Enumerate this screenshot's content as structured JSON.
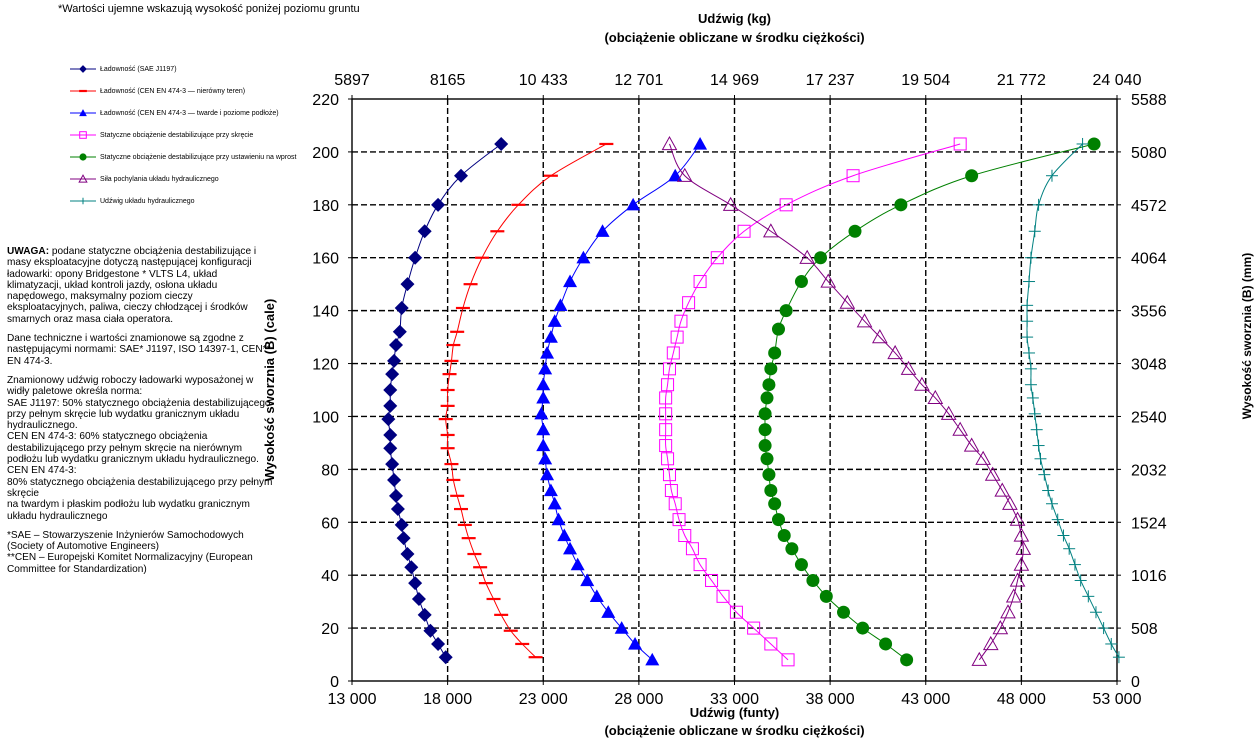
{
  "top_note": "*Wartości ujemne wskazują wysokość poniżej poziomu gruntu",
  "notes": {
    "uwaga_title": "UWAGA:",
    "uwaga_text": " podane statyczne obciążenia destabilizujące i masy eksploatacyjne dotyczą następującej konfiguracji ładowarki: opony Bridgestone * VLTS L4, układ klimatyzacji, układ kontroli jazdy, osłona układu napędowego, maksymalny poziom cieczy eksploatacyjnych, paliwa, cieczy chłodzącej i środków smarnych oraz masa ciała operatora.",
    "standards": "Dane techniczne i wartości znamionowe są zgodne z następującymi normami: SAE* J1197, ISO 14397-1, CEN** EN 474-3.",
    "rated": "Znamionowy udźwig roboczy ładowarki wyposażonej w widły paletowe określa norma:\nSAE J1197: 50% statycznego obciążenia destabilizującego przy pełnym skręcie lub wydatku granicznym układu hydraulicznego.\nCEN EN 474-3: 60% statycznego obciążenia destabilizującego przy pełnym skręcie na nierównym podłożu lub wydatku granicznym układu hydraulicznego.\nCEN EN 474-3:\n80% statycznego obciążenia destabilizującego przy pełnym skręcie\nna twardym i płaskim podłożu lub wydatku granicznym układu hydraulicznego",
    "sae_def": "*SAE – Stowarzyszenie Inżynierów Samochodowych (Society of Automotive Engineers)",
    "cen_def": "**CEN – Europejski Komitet Normalizacyjny (European Committee for Standardization)"
  },
  "chart_data": {
    "type": "line",
    "title": "Udźwig (kg)",
    "subtitle": "(obciążenie obliczane w środku ciężkości)",
    "xlabel": "Udźwig (funty)",
    "xlabel_sub": "(obciążenie obliczane w środku ciężkości)",
    "ylabel": "Wysokość sworznia (B) (cale)",
    "ylabel_right": "Wysokość sworznia (B) (mm)",
    "xlim": [
      13000,
      53000
    ],
    "ylim": [
      0,
      220
    ],
    "x_ticks": [
      "13 000",
      "18 000",
      "23 000",
      "28 000",
      "33 000",
      "38 000",
      "43 000",
      "48 000",
      "53 000"
    ],
    "x2_ticks": [
      "5897",
      "8165",
      "10 433",
      "12 701",
      "14 969",
      "17 237",
      "19 504",
      "21 772",
      "24 040"
    ],
    "y_ticks": [
      "0",
      "20",
      "40",
      "60",
      "80",
      "100",
      "120",
      "140",
      "160",
      "180",
      "200",
      "220"
    ],
    "y2_ticks": [
      "0",
      "508",
      "1016",
      "1524",
      "2032",
      "2540",
      "3048",
      "3556",
      "4064",
      "4572",
      "5080",
      "5588"
    ],
    "grid": true,
    "legend_position": "top-left",
    "series": [
      {
        "name": "Ładowność (SAE J1197)",
        "color": "#000080",
        "marker": "diamond",
        "points": [
          [
            17900,
            9
          ],
          [
            17500,
            14
          ],
          [
            17100,
            19
          ],
          [
            16800,
            25
          ],
          [
            16500,
            31
          ],
          [
            16300,
            37
          ],
          [
            16100,
            43
          ],
          [
            15900,
            48
          ],
          [
            15700,
            54
          ],
          [
            15600,
            59
          ],
          [
            15400,
            65
          ],
          [
            15300,
            70
          ],
          [
            15200,
            76
          ],
          [
            15100,
            82
          ],
          [
            15000,
            88
          ],
          [
            15000,
            93
          ],
          [
            14900,
            99
          ],
          [
            15000,
            104
          ],
          [
            15000,
            110
          ],
          [
            15100,
            116
          ],
          [
            15200,
            121
          ],
          [
            15300,
            127
          ],
          [
            15500,
            132
          ],
          [
            15600,
            141
          ],
          [
            15900,
            150
          ],
          [
            16300,
            160
          ],
          [
            16800,
            170
          ],
          [
            17500,
            180
          ],
          [
            18700,
            191
          ],
          [
            20800,
            203
          ]
        ]
      },
      {
        "name": "Ładowność (CEN EN 474-3 — nierówny teren)",
        "color": "#ff0000",
        "marker": "dash",
        "points": [
          [
            22600,
            9
          ],
          [
            21900,
            14
          ],
          [
            21300,
            19
          ],
          [
            20800,
            25
          ],
          [
            20400,
            31
          ],
          [
            20000,
            37
          ],
          [
            19700,
            43
          ],
          [
            19400,
            48
          ],
          [
            19100,
            54
          ],
          [
            18900,
            59
          ],
          [
            18700,
            65
          ],
          [
            18500,
            70
          ],
          [
            18300,
            76
          ],
          [
            18200,
            82
          ],
          [
            18000,
            88
          ],
          [
            18000,
            93
          ],
          [
            17900,
            99
          ],
          [
            18000,
            104
          ],
          [
            18000,
            110
          ],
          [
            18100,
            116
          ],
          [
            18200,
            121
          ],
          [
            18300,
            127
          ],
          [
            18500,
            132
          ],
          [
            18800,
            141
          ],
          [
            19200,
            150
          ],
          [
            19800,
            160
          ],
          [
            20600,
            170
          ],
          [
            21700,
            180
          ],
          [
            23400,
            191
          ],
          [
            26300,
            203
          ]
        ]
      },
      {
        "name": "Ładowność (CEN EN 474-3 — twarde i poziome podłoże)",
        "color": "#0000ff",
        "marker": "triangle",
        "points": [
          [
            28700,
            8
          ],
          [
            27800,
            14
          ],
          [
            27100,
            20
          ],
          [
            26400,
            26
          ],
          [
            25800,
            32
          ],
          [
            25300,
            38
          ],
          [
            24800,
            44
          ],
          [
            24400,
            50
          ],
          [
            24100,
            55
          ],
          [
            23800,
            61
          ],
          [
            23600,
            67
          ],
          [
            23400,
            72
          ],
          [
            23200,
            78
          ],
          [
            23100,
            84
          ],
          [
            23000,
            89
          ],
          [
            23000,
            95
          ],
          [
            22900,
            101
          ],
          [
            23000,
            107
          ],
          [
            23000,
            112
          ],
          [
            23100,
            118
          ],
          [
            23200,
            124
          ],
          [
            23400,
            130
          ],
          [
            23600,
            136
          ],
          [
            23900,
            142
          ],
          [
            24400,
            151
          ],
          [
            25100,
            160
          ],
          [
            26100,
            170
          ],
          [
            27700,
            180
          ],
          [
            29900,
            191
          ],
          [
            31200,
            203
          ]
        ]
      },
      {
        "name": "Statyczne obciążenie destabilizujące przy skręcie",
        "color": "#ff00ff",
        "marker": "square",
        "points": [
          [
            35800,
            8
          ],
          [
            34900,
            14
          ],
          [
            34000,
            20
          ],
          [
            33100,
            26
          ],
          [
            32400,
            32
          ],
          [
            31800,
            38
          ],
          [
            31200,
            44
          ],
          [
            30800,
            50
          ],
          [
            30400,
            55
          ],
          [
            30100,
            61
          ],
          [
            29900,
            67
          ],
          [
            29700,
            72
          ],
          [
            29600,
            78
          ],
          [
            29500,
            84
          ],
          [
            29400,
            89
          ],
          [
            29400,
            95
          ],
          [
            29400,
            101
          ],
          [
            29400,
            107
          ],
          [
            29500,
            112
          ],
          [
            29600,
            118
          ],
          [
            29800,
            124
          ],
          [
            30000,
            130
          ],
          [
            30200,
            136
          ],
          [
            30600,
            143
          ],
          [
            31200,
            151
          ],
          [
            32100,
            160
          ],
          [
            33500,
            170
          ],
          [
            35700,
            180
          ],
          [
            39200,
            191
          ],
          [
            44800,
            203
          ]
        ]
      },
      {
        "name": "Statyczne obciążenie destabilizujące przy ustawieniu na wprost",
        "color": "#008000",
        "marker": "circle",
        "points": [
          [
            42000,
            8
          ],
          [
            40900,
            14
          ],
          [
            39700,
            20
          ],
          [
            38700,
            26
          ],
          [
            37800,
            32
          ],
          [
            37100,
            38
          ],
          [
            36500,
            44
          ],
          [
            36000,
            50
          ],
          [
            35600,
            55
          ],
          [
            35300,
            61
          ],
          [
            35100,
            67
          ],
          [
            34900,
            72
          ],
          [
            34800,
            78
          ],
          [
            34700,
            84
          ],
          [
            34600,
            89
          ],
          [
            34600,
            95
          ],
          [
            34600,
            101
          ],
          [
            34700,
            107
          ],
          [
            34800,
            112
          ],
          [
            34900,
            118
          ],
          [
            35100,
            124
          ],
          [
            35300,
            133
          ],
          [
            35700,
            140
          ],
          [
            36500,
            151
          ],
          [
            37500,
            160
          ],
          [
            39300,
            170
          ],
          [
            41700,
            180
          ],
          [
            45400,
            191
          ],
          [
            51800,
            203
          ]
        ]
      },
      {
        "name": "Siła pochylania układu hydraulicznego",
        "color": "#800080",
        "marker": "triangle-open",
        "points": [
          [
            45800,
            8
          ],
          [
            46400,
            14
          ],
          [
            46900,
            20
          ],
          [
            47300,
            26
          ],
          [
            47600,
            32
          ],
          [
            47800,
            38
          ],
          [
            48000,
            44
          ],
          [
            48100,
            50
          ],
          [
            48000,
            55
          ],
          [
            47800,
            61
          ],
          [
            47400,
            67
          ],
          [
            47000,
            72
          ],
          [
            46500,
            78
          ],
          [
            46000,
            84
          ],
          [
            45400,
            89
          ],
          [
            44800,
            95
          ],
          [
            44200,
            101
          ],
          [
            43500,
            107
          ],
          [
            42800,
            112
          ],
          [
            42100,
            118
          ],
          [
            41400,
            124
          ],
          [
            40600,
            130
          ],
          [
            39800,
            136
          ],
          [
            38900,
            143
          ],
          [
            37900,
            151
          ],
          [
            36800,
            160
          ],
          [
            34900,
            170
          ],
          [
            32800,
            180
          ],
          [
            30400,
            191
          ],
          [
            29600,
            203
          ]
        ]
      },
      {
        "name": "Udźwig układu hydraulicznego",
        "color": "#008080",
        "marker": "plus",
        "points": [
          [
            53100,
            9
          ],
          [
            52700,
            14
          ],
          [
            52300,
            20
          ],
          [
            51900,
            26
          ],
          [
            51500,
            32
          ],
          [
            51100,
            38
          ],
          [
            50800,
            44
          ],
          [
            50500,
            50
          ],
          [
            50200,
            55
          ],
          [
            49900,
            61
          ],
          [
            49600,
            67
          ],
          [
            49400,
            72
          ],
          [
            49200,
            78
          ],
          [
            49000,
            84
          ],
          [
            48900,
            89
          ],
          [
            48800,
            95
          ],
          [
            48700,
            101
          ],
          [
            48600,
            107
          ],
          [
            48500,
            112
          ],
          [
            48500,
            118
          ],
          [
            48400,
            124
          ],
          [
            48300,
            130
          ],
          [
            48300,
            136
          ],
          [
            48300,
            142
          ],
          [
            48400,
            151
          ],
          [
            48500,
            160
          ],
          [
            48700,
            170
          ],
          [
            48900,
            180
          ],
          [
            49600,
            191
          ],
          [
            51200,
            203
          ]
        ]
      }
    ]
  }
}
